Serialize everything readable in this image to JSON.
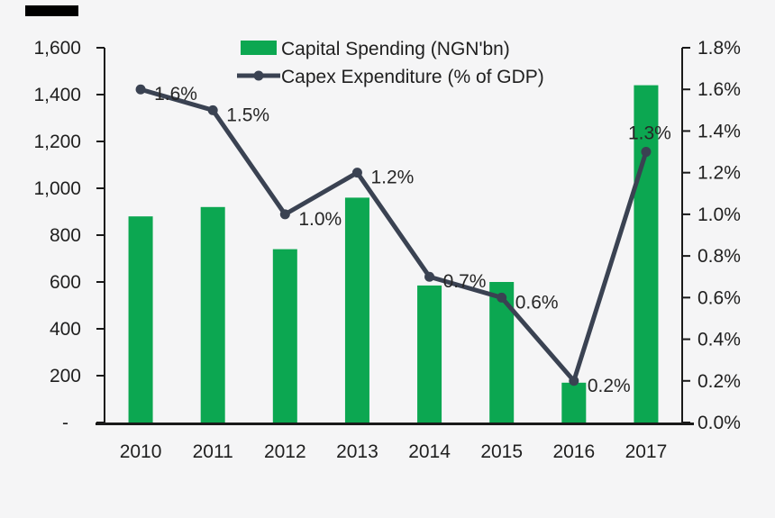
{
  "colors": {
    "background": "#f5f5f6",
    "bar_green": "#0ca751",
    "line_slate": "#3a4252",
    "axis": "#1a1a1a",
    "text": "#1f1f1f",
    "top_left_mark": "#000000"
  },
  "chart_data": {
    "type": "combo-bar-line",
    "title": "",
    "categories": [
      "2010",
      "2011",
      "2012",
      "2013",
      "2014",
      "2015",
      "2016",
      "2017"
    ],
    "series": [
      {
        "name": "Capital Spending (NGN'bn)",
        "type": "bar",
        "axis": "left",
        "color": "#0ca751",
        "values": [
          880,
          920,
          740,
          960,
          585,
          600,
          170,
          1440
        ]
      },
      {
        "name": "Capex Expenditure (% of GDP)",
        "type": "line",
        "axis": "right",
        "color": "#3a4252",
        "values": [
          1.6,
          1.5,
          1.0,
          1.2,
          0.7,
          0.6,
          0.2,
          1.3
        ],
        "point_labels": [
          "1.6%",
          "1.5%",
          "1.0%",
          "1.2%",
          "0.7%",
          "0.6%",
          "0.2%",
          "1.3%"
        ]
      }
    ],
    "left_axis": {
      "min": 0,
      "max": 1600,
      "tick_step": 200,
      "tick_labels": [
        "1,600",
        "1,400",
        "1,200",
        "1,000",
        "800",
        "600",
        "400",
        "200",
        "-"
      ]
    },
    "right_axis": {
      "min": 0,
      "max": 1.8,
      "tick_step": 0.2,
      "tick_labels": [
        "1.8%",
        "1.6%",
        "1.4%",
        "1.2%",
        "1.0%",
        "0.8%",
        "0.6%",
        "0.4%",
        "0.2%",
        "0.0%"
      ]
    },
    "legend_position": "top-center",
    "grid": false
  }
}
